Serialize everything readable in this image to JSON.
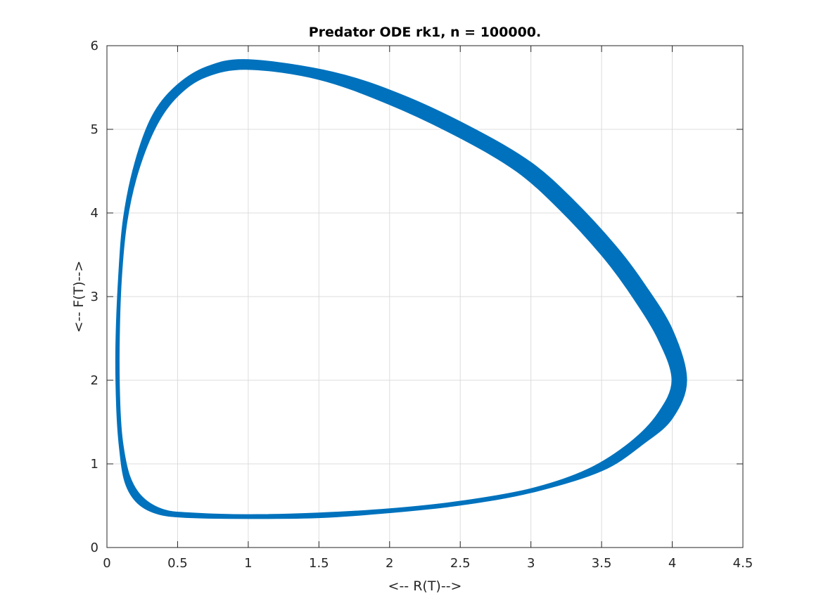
{
  "chart_data": {
    "type": "line",
    "title": "Predator ODE rk1, n = 100000.",
    "xlabel": "<-- R(T)-->",
    "ylabel": "<-- F(T)-->",
    "xlim": [
      0,
      4.5
    ],
    "ylim": [
      0,
      6
    ],
    "x_ticks": [
      0,
      0.5,
      1,
      1.5,
      2,
      2.5,
      3,
      3.5,
      4,
      4.5
    ],
    "x_tick_labels": [
      "0",
      "0.5",
      "1",
      "1.5",
      "2",
      "2.5",
      "3",
      "3.5",
      "4",
      "4.5"
    ],
    "y_ticks": [
      0,
      1,
      2,
      3,
      4,
      5,
      6
    ],
    "y_tick_labels": [
      "0",
      "1",
      "2",
      "3",
      "4",
      "5",
      "6"
    ],
    "grid": true,
    "series_color": "#0072BD",
    "series": [
      {
        "band": "inner",
        "x": [
          4.0,
          3.9,
          3.7,
          3.5,
          3.2,
          2.9,
          2.5,
          2.0,
          1.5,
          1.0,
          0.7,
          0.5,
          0.35,
          0.22,
          0.14,
          0.1,
          0.085,
          0.09,
          0.11,
          0.16,
          0.25,
          0.4,
          0.6,
          1.0,
          1.5,
          2.0,
          2.5,
          3.0,
          3.4,
          3.7,
          3.9,
          4.0
        ],
        "y": [
          2.0,
          2.5,
          3.05,
          3.5,
          4.05,
          4.5,
          4.9,
          5.3,
          5.6,
          5.72,
          5.63,
          5.4,
          5.05,
          4.5,
          3.9,
          3.2,
          2.4,
          1.7,
          1.25,
          0.85,
          0.6,
          0.45,
          0.41,
          0.39,
          0.41,
          0.46,
          0.55,
          0.7,
          0.93,
          1.25,
          1.6,
          2.0
        ]
      },
      {
        "band": "outer",
        "x": [
          4.1,
          4.0,
          3.8,
          3.6,
          3.3,
          3.0,
          2.6,
          2.1,
          1.6,
          1.0,
          0.7,
          0.48,
          0.32,
          0.2,
          0.12,
          0.085,
          0.065,
          0.07,
          0.09,
          0.13,
          0.22,
          0.37,
          0.6,
          1.0,
          1.5,
          2.0,
          2.5,
          3.0,
          3.5,
          3.8,
          4.0,
          4.1
        ],
        "y": [
          2.0,
          2.6,
          3.15,
          3.6,
          4.15,
          4.6,
          5.0,
          5.4,
          5.68,
          5.83,
          5.74,
          5.5,
          5.15,
          4.6,
          3.95,
          3.25,
          2.4,
          1.7,
          1.2,
          0.78,
          0.53,
          0.4,
          0.36,
          0.35,
          0.36,
          0.42,
          0.51,
          0.66,
          0.92,
          1.25,
          1.55,
          2.0
        ]
      }
    ]
  }
}
